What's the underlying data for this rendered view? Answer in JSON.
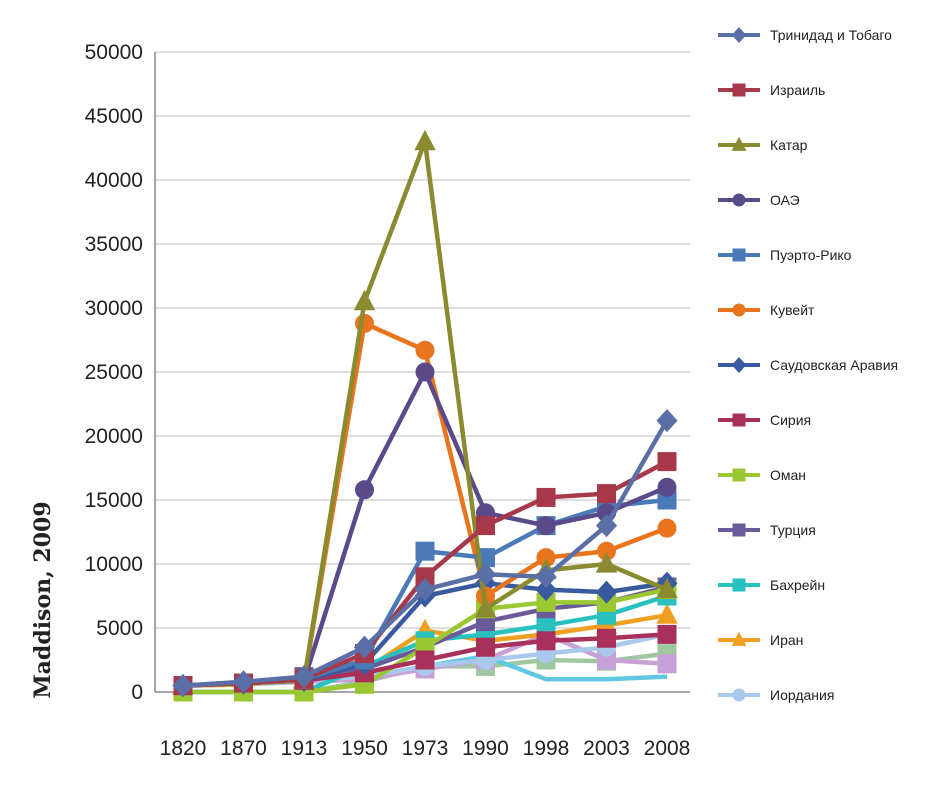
{
  "chart_data": {
    "type": "line",
    "title": "",
    "xlabel": "",
    "ylabel": "Maddison, 2009",
    "ylim": [
      0,
      50000
    ],
    "yticks": [
      0,
      5000,
      10000,
      15000,
      20000,
      25000,
      30000,
      35000,
      40000,
      45000,
      50000
    ],
    "categories": [
      "1820",
      "1870",
      "1913",
      "1950",
      "1973",
      "1990",
      "1998",
      "2003",
      "2008"
    ],
    "grid": true,
    "legend_position": "right",
    "series": [
      {
        "name": "Тринидад и Тобаго",
        "color": "#5a6fa6",
        "marker": "diamond",
        "values": [
          500,
          800,
          1200,
          3500,
          8000,
          9200,
          9000,
          13000,
          21200
        ]
      },
      {
        "name": "Израиль",
        "color": "#a6384a",
        "marker": "square",
        "values": [
          500,
          700,
          1000,
          3000,
          9000,
          13000,
          15200,
          15500,
          18000
        ]
      },
      {
        "name": "Катар",
        "color": "#8a8a30",
        "marker": "triangle",
        "values": [
          500,
          700,
          900,
          30500,
          43000,
          6500,
          9500,
          10000,
          8000
        ]
      },
      {
        "name": "ОАЭ",
        "color": "#5a4a8a",
        "marker": "circle",
        "values": [
          500,
          700,
          900,
          15800,
          25000,
          14000,
          13000,
          14000,
          16000
        ]
      },
      {
        "name": "Пуэрто-Рико",
        "color": "#4a7ab8",
        "marker": "square",
        "values": [
          500,
          700,
          1000,
          2500,
          11000,
          10500,
          13000,
          14500,
          15000
        ]
      },
      {
        "name": "Кувейт",
        "color": "#e8741e",
        "marker": "circle",
        "values": [
          500,
          700,
          900,
          28800,
          26700,
          7500,
          10500,
          11000,
          12800
        ]
      },
      {
        "name": "Саудовская Аравия",
        "color": "#3a5aa0",
        "marker": "diamond",
        "values": [
          500,
          700,
          900,
          2200,
          7500,
          8500,
          8000,
          7800,
          8500
        ]
      },
      {
        "name": "Сирия",
        "color": "#a8305a",
        "marker": "square",
        "values": [
          500,
          700,
          900,
          1500,
          2500,
          3500,
          4000,
          4200,
          4500
        ]
      },
      {
        "name": "Оман",
        "color": "#9ac832",
        "marker": "square",
        "values": [
          0,
          0,
          0,
          600,
          3500,
          6500,
          7000,
          7000,
          8000
        ]
      },
      {
        "name": "Турция",
        "color": "#6a5a9a",
        "marker": "square",
        "values": [
          500,
          700,
          1200,
          1800,
          3500,
          5500,
          6500,
          7000,
          8200
        ]
      },
      {
        "name": "Бахрейн",
        "color": "#2ac0c0",
        "marker": "square",
        "values": [
          0,
          0,
          0,
          2000,
          4000,
          4500,
          5200,
          6000,
          7500
        ]
      },
      {
        "name": "Иран",
        "color": "#f0a020",
        "marker": "triangle",
        "values": [
          500,
          600,
          1000,
          1700,
          4800,
          4000,
          4500,
          5200,
          6000
        ]
      },
      {
        "name": "Иордания",
        "color": "#a8c8ec",
        "marker": "circle",
        "values": [
          500,
          600,
          900,
          1200,
          2000,
          2500,
          3000,
          3500,
          4500
        ]
      },
      {
        "name": "",
        "color": "#c8a0d8",
        "marker": "square",
        "values": [
          500,
          600,
          800,
          1000,
          1800,
          2500,
          4500,
          2500,
          2200
        ]
      },
      {
        "name": "",
        "color": "#60c8e0",
        "marker": "none",
        "values": [
          500,
          600,
          800,
          1000,
          2000,
          2800,
          1000,
          1000,
          1200
        ]
      },
      {
        "name": "",
        "color": "#a0c8a0",
        "marker": "square",
        "values": [
          0,
          0,
          0,
          800,
          2000,
          2000,
          2500,
          2400,
          3000
        ]
      }
    ]
  }
}
